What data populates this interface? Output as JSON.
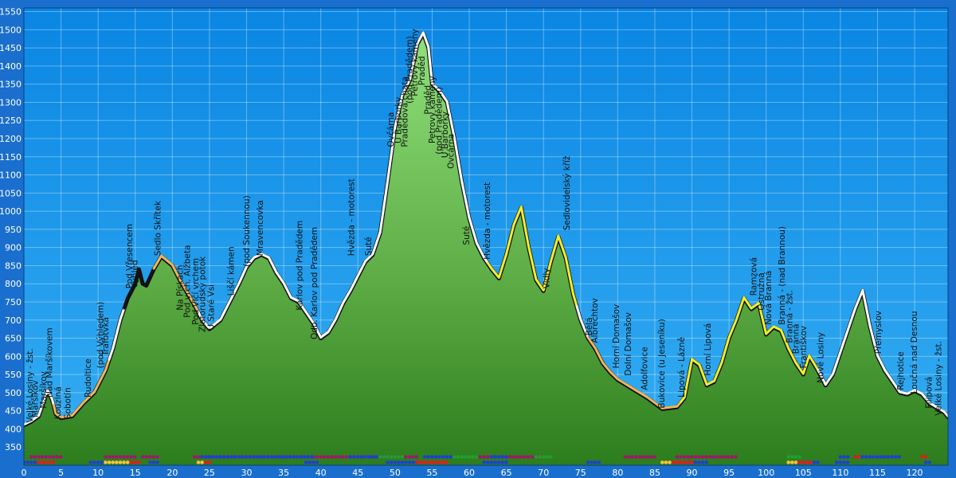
{
  "chart_data": {
    "type": "area",
    "title": "",
    "xlabel": "",
    "ylabel": "",
    "xlim": [
      0,
      124.5
    ],
    "ylim": [
      300,
      1560
    ],
    "x_ticks": [
      "0",
      "5",
      "10",
      "15",
      "20",
      "25",
      "30",
      "35",
      "40",
      "45",
      "50",
      "55",
      "60",
      "65",
      "70",
      "75",
      "80",
      "85",
      "90",
      "95",
      "100",
      "105",
      "110",
      "115",
      "120"
    ],
    "y_ticks": [
      "350",
      "400",
      "450",
      "500",
      "550",
      "600",
      "650",
      "700",
      "750",
      "800",
      "850",
      "900",
      "950",
      "1000",
      "1050",
      "1100",
      "1150",
      "1200",
      "1250",
      "1300",
      "1350",
      "1400",
      "1450",
      "1500",
      "1550"
    ],
    "grid": true,
    "colors": {
      "background": "#1a6fce",
      "plot_top": "#0a8ae6",
      "plot_bottom": "#2aa9f2",
      "fill_top": "#8bdd7a",
      "fill_bottom": "#2d7d1f",
      "route_white": "#ffffff",
      "route_orange": "#f2b65a",
      "route_yellow": "#f4ee2a",
      "outline": "#111111"
    },
    "elevation_profile": [
      [
        0,
        410
      ],
      [
        1,
        420
      ],
      [
        2,
        435
      ],
      [
        2.6,
        470
      ],
      [
        3.2,
        505
      ],
      [
        3.8,
        480
      ],
      [
        4.3,
        440
      ],
      [
        5,
        430
      ],
      [
        6.5,
        435
      ],
      [
        8,
        470
      ],
      [
        9.5,
        500
      ],
      [
        11,
        560
      ],
      [
        12,
        620
      ],
      [
        13,
        700
      ],
      [
        14,
        760
      ],
      [
        15,
        800
      ],
      [
        15.5,
        840
      ],
      [
        16,
        800
      ],
      [
        16.5,
        795
      ],
      [
        17.5,
        840
      ],
      [
        18.5,
        875
      ],
      [
        20,
        850
      ],
      [
        21,
        810
      ],
      [
        22,
        775
      ],
      [
        23,
        740
      ],
      [
        24,
        700
      ],
      [
        25,
        675
      ],
      [
        26.5,
        700
      ],
      [
        28,
        760
      ],
      [
        29,
        800
      ],
      [
        30,
        845
      ],
      [
        31,
        870
      ],
      [
        32,
        880
      ],
      [
        33,
        870
      ],
      [
        34,
        830
      ],
      [
        35,
        800
      ],
      [
        36,
        760
      ],
      [
        37,
        750
      ],
      [
        38,
        720
      ],
      [
        39,
        690
      ],
      [
        40,
        650
      ],
      [
        41,
        665
      ],
      [
        42,
        700
      ],
      [
        43,
        745
      ],
      [
        44,
        780
      ],
      [
        45,
        820
      ],
      [
        46,
        860
      ],
      [
        47,
        880
      ],
      [
        48,
        940
      ],
      [
        49,
        1080
      ],
      [
        50,
        1230
      ],
      [
        51,
        1320
      ],
      [
        52,
        1360
      ],
      [
        53,
        1460
      ],
      [
        53.8,
        1490
      ],
      [
        54.5,
        1450
      ],
      [
        55,
        1350
      ],
      [
        56,
        1330
      ],
      [
        57,
        1300
      ],
      [
        58,
        1200
      ],
      [
        59,
        1080
      ],
      [
        60,
        980
      ],
      [
        61,
        910
      ],
      [
        62,
        870
      ],
      [
        63,
        840
      ],
      [
        64,
        815
      ],
      [
        65,
        880
      ],
      [
        66,
        960
      ],
      [
        67,
        1010
      ],
      [
        68,
        900
      ],
      [
        69,
        810
      ],
      [
        70,
        780
      ],
      [
        71,
        860
      ],
      [
        72,
        930
      ],
      [
        73,
        870
      ],
      [
        74,
        770
      ],
      [
        75,
        700
      ],
      [
        76,
        650
      ],
      [
        77,
        620
      ],
      [
        78,
        580
      ],
      [
        79,
        555
      ],
      [
        80,
        535
      ],
      [
        82,
        510
      ],
      [
        84,
        485
      ],
      [
        86,
        455
      ],
      [
        88,
        460
      ],
      [
        89,
        485
      ],
      [
        90,
        590
      ],
      [
        91,
        575
      ],
      [
        92,
        520
      ],
      [
        93,
        530
      ],
      [
        94,
        580
      ],
      [
        95,
        650
      ],
      [
        96,
        700
      ],
      [
        97,
        760
      ],
      [
        98,
        730
      ],
      [
        99,
        745
      ],
      [
        100,
        660
      ],
      [
        101,
        680
      ],
      [
        102,
        670
      ],
      [
        103,
        620
      ],
      [
        104,
        580
      ],
      [
        105,
        550
      ],
      [
        105.8,
        600
      ],
      [
        107,
        560
      ],
      [
        108,
        520
      ],
      [
        109,
        550
      ],
      [
        110,
        610
      ],
      [
        111,
        670
      ],
      [
        112,
        730
      ],
      [
        113,
        780
      ],
      [
        114,
        680
      ],
      [
        115,
        600
      ],
      [
        116,
        560
      ],
      [
        117,
        530
      ],
      [
        118,
        500
      ],
      [
        119,
        495
      ],
      [
        120,
        505
      ],
      [
        121,
        495
      ],
      [
        122,
        470
      ],
      [
        124,
        445
      ],
      [
        125,
        420
      ]
    ],
    "route_segments": [
      {
        "color": "white",
        "x": [
          0,
          4
        ]
      },
      {
        "color": "orange",
        "x": [
          4,
          11.5
        ]
      },
      {
        "color": "white",
        "x": [
          11.5,
          13.5
        ]
      },
      {
        "color": "black",
        "x": [
          13.5,
          17.5
        ]
      },
      {
        "color": "orange",
        "x": [
          17.5,
          23.5
        ]
      },
      {
        "color": "white",
        "x": [
          23.5,
          60
        ]
      },
      {
        "color": "white",
        "x": [
          60,
          62.5
        ]
      },
      {
        "color": "yellow",
        "x": [
          62.5,
          74.5
        ]
      },
      {
        "color": "white",
        "x": [
          74.5,
          76
        ]
      },
      {
        "color": "orange",
        "x": [
          76,
          88.5
        ]
      },
      {
        "color": "yellow",
        "x": [
          88.5,
          107
        ]
      },
      {
        "color": "white",
        "x": [
          107,
          124.5
        ]
      }
    ],
    "place_labels": [
      {
        "x": 1.2,
        "elev": 430,
        "text": "Velké Losiny - žst."
      },
      {
        "x": 1.9,
        "elev": 445,
        "text": "Maršíkov"
      },
      {
        "x": 3.0,
        "elev": 470,
        "text": "Maršíkov"
      },
      {
        "x": 3.8,
        "elev": 500,
        "text": "Nad Maršíkovem"
      },
      {
        "x": 5.0,
        "elev": 440,
        "text": "Kouzlná"
      },
      {
        "x": 6.3,
        "elev": 440,
        "text": "Sobotín"
      },
      {
        "x": 9.0,
        "elev": 500,
        "text": "Rudoltice"
      },
      {
        "x": 10.7,
        "elev": 580,
        "text": "(pod Výhledem)"
      },
      {
        "x": 11.4,
        "elev": 615,
        "text": "Trafotvká"
      },
      {
        "x": 14.6,
        "elev": 800,
        "text": "Pod Vřesencem"
      },
      {
        "x": 15.3,
        "elev": 800,
        "text": "Výhled"
      },
      {
        "x": 18.4,
        "elev": 890,
        "text": "Sedlo Skřítek"
      },
      {
        "x": 21.4,
        "elev": 740,
        "text": "Na Pískách"
      },
      {
        "x": 22.4,
        "elev": 720,
        "text": "Pod vrch. Alžbeta"
      },
      {
        "x": 23.5,
        "elev": 700,
        "text": "Pod Vlčí vrchem"
      },
      {
        "x": 24.4,
        "elev": 680,
        "text": "Zlatorudský potok"
      },
      {
        "x": 25.6,
        "elev": 685,
        "text": "U Staré Vsi"
      },
      {
        "x": 28.3,
        "elev": 780,
        "text": "Liščí kámen"
      },
      {
        "x": 30.4,
        "elev": 860,
        "text": "(pod Soukennou)"
      },
      {
        "x": 32.2,
        "elev": 890,
        "text": "Mravencovka"
      },
      {
        "x": 37.5,
        "elev": 740,
        "text": "Karlov pod Pradědem"
      },
      {
        "x": 39.5,
        "elev": 660,
        "text": "Odb. Karlov pod Pradědem"
      },
      {
        "x": 44.5,
        "elev": 890,
        "text": "Hvězda - motorest"
      },
      {
        "x": 46.8,
        "elev": 890,
        "text": "Suté"
      },
      {
        "x": 49.8,
        "elev": 1190,
        "text": "Ovčárna"
      },
      {
        "x": 50.8,
        "elev": 1200,
        "text": "U Barborky"
      },
      {
        "x": 51.7,
        "elev": 1190,
        "text": "Pradědova chata"
      },
      {
        "x": 52.3,
        "elev": 1310,
        "text": "(pod Pradědem)"
      },
      {
        "x": 53.0,
        "elev": 1330,
        "text": "Petrovy kameny"
      },
      {
        "x": 54.0,
        "elev": 1360,
        "text": "Praděd"
      },
      {
        "x": 54.8,
        "elev": 1280,
        "text": "Praděd"
      },
      {
        "x": 55.4,
        "elev": 1200,
        "text": "Petrovy kameny"
      },
      {
        "x": 56.3,
        "elev": 1170,
        "text": "(pod Pradědem)"
      },
      {
        "x": 57.1,
        "elev": 1160,
        "text": "U Barborky"
      },
      {
        "x": 57.9,
        "elev": 1130,
        "text": "Ovčárna"
      },
      {
        "x": 60.0,
        "elev": 920,
        "text": "Suté"
      },
      {
        "x": 62.8,
        "elev": 880,
        "text": "Hvězda - motorest"
      },
      {
        "x": 70.8,
        "elev": 800,
        "text": "Vidly"
      },
      {
        "x": 73.5,
        "elev": 960,
        "text": "Sedlovidelský kříž"
      },
      {
        "x": 76.5,
        "elev": 670,
        "text": "Bělá"
      },
      {
        "x": 77.3,
        "elev": 650,
        "text": "Albrechtov"
      },
      {
        "x": 80.2,
        "elev": 580,
        "text": "Horní Domašov"
      },
      {
        "x": 81.8,
        "elev": 560,
        "text": "Dolní Domašov"
      },
      {
        "x": 84.0,
        "elev": 520,
        "text": "Adolfovice"
      },
      {
        "x": 86.3,
        "elev": 470,
        "text": "Bukovice (u Jeseníku)"
      },
      {
        "x": 89.0,
        "elev": 500,
        "text": "Lipová - Lázně"
      },
      {
        "x": 92.5,
        "elev": 560,
        "text": "Horní Lipová"
      },
      {
        "x": 98.7,
        "elev": 780,
        "text": "Ramzová"
      },
      {
        "x": 99.7,
        "elev": 740,
        "text": "Ostružná"
      },
      {
        "x": 100.7,
        "elev": 700,
        "text": "Nová Branná"
      },
      {
        "x": 102.5,
        "elev": 700,
        "text": "Branná - (nad Brannou)"
      },
      {
        "x": 103.5,
        "elev": 650,
        "text": "Branná - žst."
      },
      {
        "x": 104.4,
        "elev": 620,
        "text": "Branná"
      },
      {
        "x": 105.4,
        "elev": 580,
        "text": "Františkov"
      },
      {
        "x": 107.7,
        "elev": 540,
        "text": "Nové Losiny"
      },
      {
        "x": 115.5,
        "elev": 620,
        "text": "Přemyslov"
      },
      {
        "x": 118.5,
        "elev": 520,
        "text": "Rejhotice"
      },
      {
        "x": 120.3,
        "elev": 510,
        "text": "Loučná nad Desnou"
      },
      {
        "x": 122.3,
        "elev": 470,
        "text": "Filipová"
      },
      {
        "x": 123.6,
        "elev": 450,
        "text": "Velké Losiny - žst."
      }
    ],
    "marker_rows": [
      {
        "elev": 323,
        "color": "#9c1a6b",
        "x": [
          [
            1,
            5
          ],
          [
            11,
            15
          ],
          [
            16,
            18
          ],
          [
            23,
            24
          ],
          [
            24.5,
            38
          ],
          [
            39,
            44
          ],
          [
            45,
            53
          ],
          [
            61,
            70
          ],
          [
            81,
            85
          ],
          [
            88,
            96
          ]
        ]
      },
      {
        "elev": 323,
        "color": "#1f3fd1",
        "x": [
          [
            24,
            39
          ],
          [
            44,
            49
          ],
          [
            54,
            58
          ],
          [
            63,
            65
          ],
          [
            110,
            111
          ],
          [
            112,
            118
          ]
        ]
      },
      {
        "elev": 323,
        "color": "#1fa02c",
        "x": [
          [
            48,
            51
          ],
          [
            58,
            61
          ],
          [
            69,
            71
          ],
          [
            103,
            104.5
          ]
        ]
      },
      {
        "elev": 323,
        "color": "#e21d1d",
        "x": [
          [
            112,
            112.5
          ],
          [
            121,
            121.5
          ]
        ]
      },
      {
        "elev": 308,
        "color": "#1f3fd1",
        "x": [
          [
            0,
            2
          ],
          [
            9,
            10.5
          ],
          [
            17,
            18
          ],
          [
            38,
            39.5
          ],
          [
            49,
            53
          ],
          [
            62,
            65
          ],
          [
            76,
            77.5
          ],
          [
            89,
            92
          ],
          [
            104,
            107
          ],
          [
            109.5,
            111
          ],
          [
            121.5,
            122
          ]
        ]
      },
      {
        "elev": 308,
        "color": "#e21d1d",
        "x": [
          [
            2,
            4
          ],
          [
            14,
            15.5
          ],
          [
            24,
            25
          ],
          [
            53,
            57
          ],
          [
            87,
            90
          ],
          [
            104,
            106
          ]
        ]
      },
      {
        "elev": 308,
        "color": "#f4c23a",
        "x": [
          [
            11,
            14
          ],
          [
            23.5,
            24
          ],
          [
            86,
            87
          ],
          [
            103,
            104
          ]
        ]
      }
    ]
  }
}
